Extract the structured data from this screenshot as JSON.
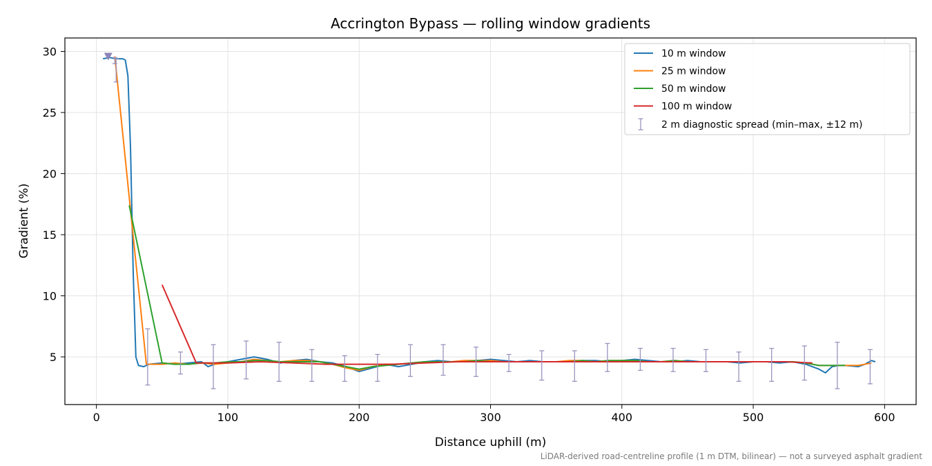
{
  "chart_data": {
    "type": "line",
    "title": "Accrington Bypass — rolling window gradients",
    "xlabel": "Distance uphill (m)",
    "ylabel": "Gradient (%)",
    "xlim": [
      -24,
      624
    ],
    "ylim": [
      1.1,
      31.1
    ],
    "xticks": [
      0,
      100,
      200,
      300,
      400,
      500,
      600
    ],
    "yticks": [
      5,
      10,
      15,
      20,
      25,
      30
    ],
    "grid": true,
    "legend_position": "upper right",
    "footnote": "LiDAR-derived road-centreline profile (1 m DTM, bilinear) — not a surveyed asphalt gradient",
    "series": [
      {
        "name": "10 m window",
        "color": "#1f77b4",
        "points": [
          [
            5,
            29.4
          ],
          [
            10,
            29.5
          ],
          [
            15,
            29.4
          ],
          [
            20,
            29.4
          ],
          [
            22,
            29.3
          ],
          [
            24,
            28.0
          ],
          [
            26,
            22.0
          ],
          [
            28,
            12.0
          ],
          [
            30,
            5.0
          ],
          [
            32,
            4.3
          ],
          [
            36,
            4.2
          ],
          [
            40,
            4.4
          ],
          [
            50,
            4.5
          ],
          [
            60,
            4.4
          ],
          [
            70,
            4.5
          ],
          [
            80,
            4.6
          ],
          [
            85,
            4.2
          ],
          [
            90,
            4.4
          ],
          [
            100,
            4.6
          ],
          [
            110,
            4.8
          ],
          [
            120,
            5.0
          ],
          [
            130,
            4.8
          ],
          [
            140,
            4.5
          ],
          [
            150,
            4.7
          ],
          [
            160,
            4.8
          ],
          [
            170,
            4.6
          ],
          [
            180,
            4.5
          ],
          [
            190,
            4.2
          ],
          [
            200,
            3.8
          ],
          [
            210,
            4.1
          ],
          [
            220,
            4.4
          ],
          [
            230,
            4.2
          ],
          [
            240,
            4.4
          ],
          [
            250,
            4.6
          ],
          [
            260,
            4.7
          ],
          [
            270,
            4.6
          ],
          [
            280,
            4.6
          ],
          [
            290,
            4.7
          ],
          [
            300,
            4.8
          ],
          [
            310,
            4.7
          ],
          [
            320,
            4.6
          ],
          [
            330,
            4.7
          ],
          [
            340,
            4.6
          ],
          [
            350,
            4.6
          ],
          [
            360,
            4.6
          ],
          [
            370,
            4.7
          ],
          [
            380,
            4.7
          ],
          [
            390,
            4.6
          ],
          [
            400,
            4.7
          ],
          [
            410,
            4.8
          ],
          [
            420,
            4.7
          ],
          [
            430,
            4.6
          ],
          [
            440,
            4.6
          ],
          [
            450,
            4.7
          ],
          [
            460,
            4.6
          ],
          [
            470,
            4.6
          ],
          [
            480,
            4.6
          ],
          [
            490,
            4.5
          ],
          [
            500,
            4.6
          ],
          [
            510,
            4.6
          ],
          [
            520,
            4.5
          ],
          [
            530,
            4.6
          ],
          [
            540,
            4.4
          ],
          [
            550,
            4.0
          ],
          [
            555,
            3.7
          ],
          [
            560,
            4.2
          ],
          [
            565,
            4.3
          ],
          [
            570,
            4.3
          ],
          [
            580,
            4.2
          ],
          [
            585,
            4.4
          ],
          [
            590,
            4.7
          ],
          [
            593,
            4.6
          ]
        ]
      },
      {
        "name": "25 m window",
        "color": "#ff7f0e",
        "points": [
          [
            14,
            29.6
          ],
          [
            26,
            17.0
          ],
          [
            38,
            4.4
          ],
          [
            50,
            4.4
          ],
          [
            60,
            4.5
          ],
          [
            70,
            4.4
          ],
          [
            80,
            4.5
          ],
          [
            90,
            4.4
          ],
          [
            100,
            4.5
          ],
          [
            110,
            4.6
          ],
          [
            120,
            4.8
          ],
          [
            130,
            4.7
          ],
          [
            140,
            4.6
          ],
          [
            150,
            4.7
          ],
          [
            160,
            4.7
          ],
          [
            170,
            4.6
          ],
          [
            180,
            4.4
          ],
          [
            190,
            4.1
          ],
          [
            200,
            3.9
          ],
          [
            210,
            4.2
          ],
          [
            220,
            4.4
          ],
          [
            230,
            4.4
          ],
          [
            240,
            4.5
          ],
          [
            250,
            4.6
          ],
          [
            260,
            4.6
          ],
          [
            270,
            4.6
          ],
          [
            280,
            4.7
          ],
          [
            290,
            4.7
          ],
          [
            300,
            4.7
          ],
          [
            310,
            4.6
          ],
          [
            320,
            4.6
          ],
          [
            330,
            4.6
          ],
          [
            340,
            4.6
          ],
          [
            350,
            4.6
          ],
          [
            360,
            4.7
          ],
          [
            370,
            4.7
          ],
          [
            380,
            4.6
          ],
          [
            390,
            4.7
          ],
          [
            400,
            4.7
          ],
          [
            410,
            4.7
          ],
          [
            420,
            4.6
          ],
          [
            430,
            4.6
          ],
          [
            440,
            4.7
          ],
          [
            450,
            4.6
          ],
          [
            460,
            4.6
          ],
          [
            470,
            4.6
          ],
          [
            480,
            4.6
          ],
          [
            490,
            4.6
          ],
          [
            500,
            4.6
          ],
          [
            510,
            4.6
          ],
          [
            520,
            4.6
          ],
          [
            530,
            4.6
          ],
          [
            540,
            4.5
          ],
          [
            550,
            4.3
          ],
          [
            560,
            4.3
          ],
          [
            570,
            4.3
          ],
          [
            580,
            4.3
          ],
          [
            590,
            4.5
          ]
        ]
      },
      {
        "name": "50 m window",
        "color": "#2ca02c",
        "points": [
          [
            25,
            17.4
          ],
          [
            50,
            4.5
          ],
          [
            60,
            4.4
          ],
          [
            70,
            4.4
          ],
          [
            80,
            4.5
          ],
          [
            90,
            4.5
          ],
          [
            100,
            4.6
          ],
          [
            110,
            4.6
          ],
          [
            120,
            4.7
          ],
          [
            130,
            4.7
          ],
          [
            140,
            4.6
          ],
          [
            150,
            4.6
          ],
          [
            160,
            4.6
          ],
          [
            170,
            4.6
          ],
          [
            180,
            4.4
          ],
          [
            190,
            4.2
          ],
          [
            200,
            4.0
          ],
          [
            210,
            4.2
          ],
          [
            220,
            4.3
          ],
          [
            230,
            4.4
          ],
          [
            240,
            4.5
          ],
          [
            250,
            4.6
          ],
          [
            260,
            4.6
          ],
          [
            270,
            4.6
          ],
          [
            280,
            4.6
          ],
          [
            290,
            4.7
          ],
          [
            300,
            4.6
          ],
          [
            310,
            4.6
          ],
          [
            320,
            4.6
          ],
          [
            330,
            4.6
          ],
          [
            340,
            4.6
          ],
          [
            350,
            4.6
          ],
          [
            360,
            4.6
          ],
          [
            370,
            4.7
          ],
          [
            380,
            4.6
          ],
          [
            390,
            4.7
          ],
          [
            400,
            4.7
          ],
          [
            410,
            4.7
          ],
          [
            420,
            4.6
          ],
          [
            430,
            4.6
          ],
          [
            440,
            4.7
          ],
          [
            450,
            4.6
          ],
          [
            460,
            4.6
          ],
          [
            470,
            4.6
          ],
          [
            480,
            4.6
          ],
          [
            490,
            4.6
          ],
          [
            500,
            4.6
          ],
          [
            510,
            4.6
          ],
          [
            520,
            4.6
          ],
          [
            530,
            4.6
          ],
          [
            540,
            4.5
          ],
          [
            550,
            4.3
          ],
          [
            560,
            4.3
          ],
          [
            570,
            4.3
          ]
        ]
      },
      {
        "name": "100 m window",
        "color": "#d62728",
        "points": [
          [
            50,
            10.9
          ],
          [
            76,
            4.5
          ],
          [
            100,
            4.5
          ],
          [
            125,
            4.6
          ],
          [
            150,
            4.5
          ],
          [
            175,
            4.4
          ],
          [
            200,
            4.4
          ],
          [
            225,
            4.4
          ],
          [
            250,
            4.5
          ],
          [
            275,
            4.6
          ],
          [
            300,
            4.6
          ],
          [
            325,
            4.6
          ],
          [
            350,
            4.6
          ],
          [
            375,
            4.6
          ],
          [
            400,
            4.6
          ],
          [
            425,
            4.6
          ],
          [
            450,
            4.6
          ],
          [
            475,
            4.6
          ],
          [
            500,
            4.6
          ],
          [
            525,
            4.6
          ],
          [
            545,
            4.5
          ]
        ]
      }
    ],
    "errorbars": {
      "name": "2 m diagnostic spread (min–max, ±12 m)",
      "color": "#9a93bd",
      "bars": [
        [
          14,
          29.0,
          29.5
        ],
        [
          15,
          27.5,
          29.4
        ],
        [
          39,
          2.7,
          7.3
        ],
        [
          64,
          3.6,
          5.4
        ],
        [
          89,
          2.4,
          6.0
        ],
        [
          114,
          3.2,
          6.3
        ],
        [
          139,
          3.0,
          6.2
        ],
        [
          164,
          3.0,
          5.6
        ],
        [
          189,
          3.0,
          5.1
        ],
        [
          214,
          3.0,
          5.2
        ],
        [
          239,
          3.4,
          6.0
        ],
        [
          264,
          3.5,
          6.0
        ],
        [
          289,
          3.4,
          5.8
        ],
        [
          314,
          3.8,
          5.2
        ],
        [
          339,
          3.1,
          5.5
        ],
        [
          364,
          3.0,
          5.5
        ],
        [
          389,
          3.8,
          6.1
        ],
        [
          414,
          3.9,
          5.7
        ],
        [
          439,
          3.8,
          5.7
        ],
        [
          464,
          3.8,
          5.6
        ],
        [
          489,
          3.0,
          5.4
        ],
        [
          514,
          3.0,
          5.7
        ],
        [
          539,
          3.1,
          5.9
        ],
        [
          564,
          2.4,
          6.2
        ],
        [
          589,
          2.8,
          5.6
        ]
      ]
    },
    "marker": {
      "x": 9,
      "y": 29.6,
      "shape": "down-triangle",
      "color": "#8c86b8"
    }
  }
}
